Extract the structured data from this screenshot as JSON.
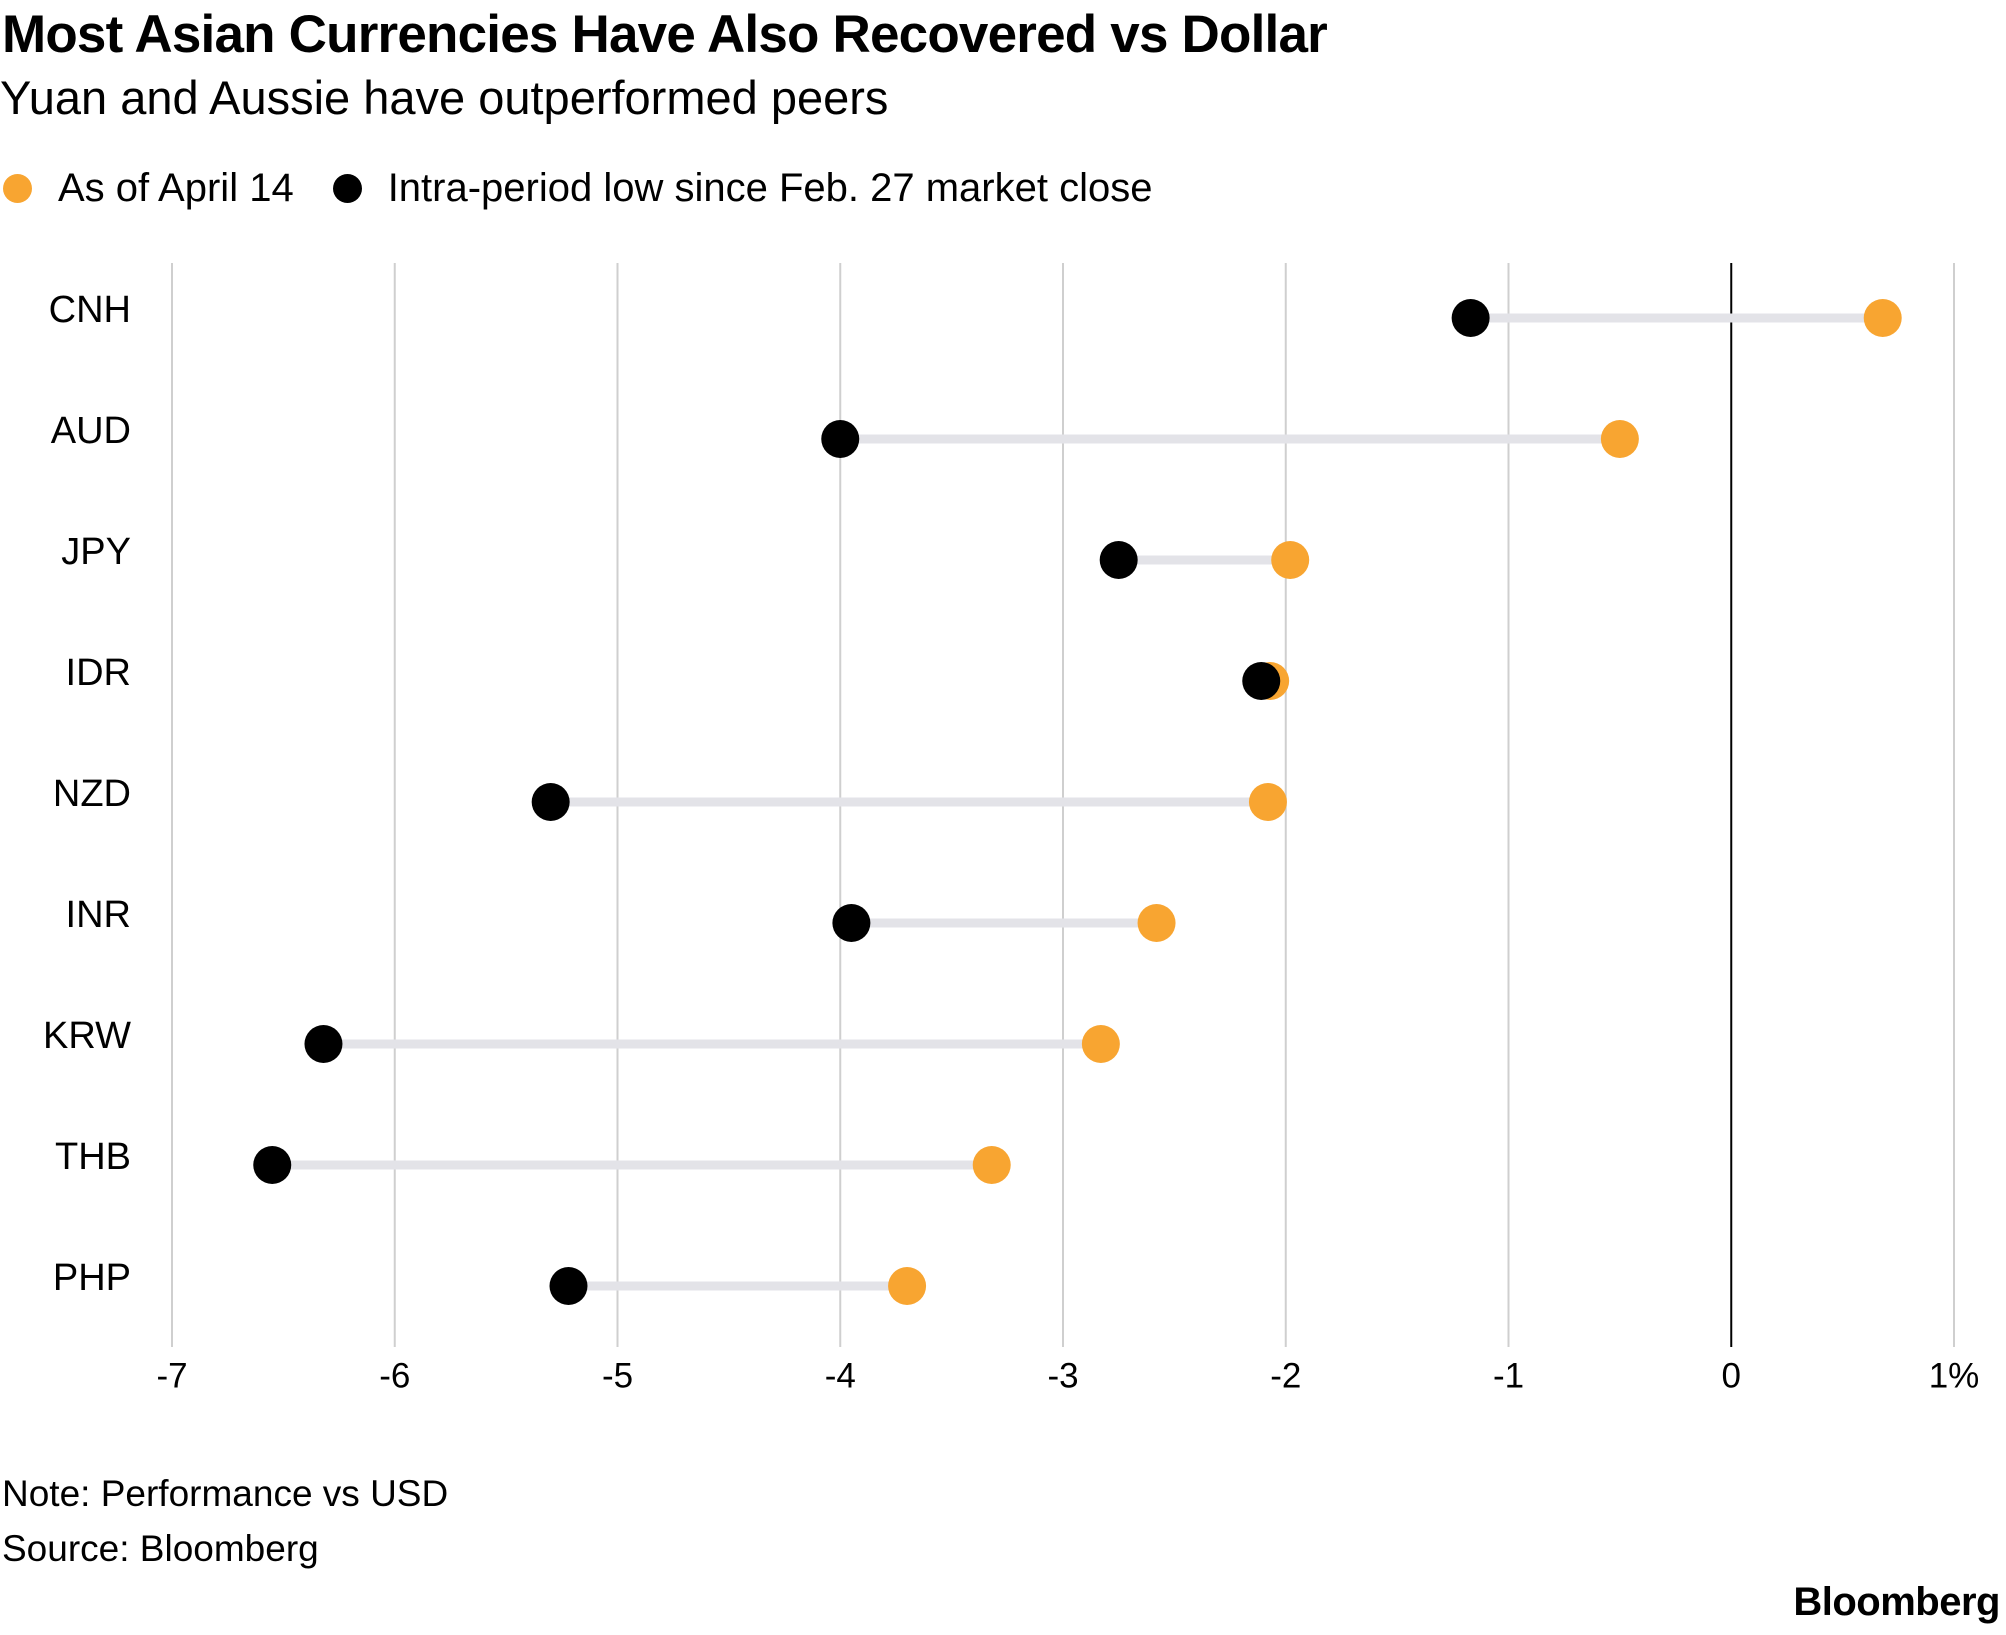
{
  "header": {
    "title": "Most Asian Currencies Have Also Recovered vs Dollar",
    "subtitle": "Yuan and Aussie have outperformed peers"
  },
  "legend": {
    "items": [
      {
        "label": "As of April 14",
        "color": "#F8A531"
      },
      {
        "label": "Intra-period low since Feb. 27 market close",
        "color": "#000000"
      }
    ]
  },
  "chart_data": {
    "type": "dumbbell",
    "title": "Most Asian Currencies Have Also Recovered vs Dollar",
    "subtitle": "Yuan and Aussie have outperformed peers",
    "xlabel": "",
    "ylabel": "",
    "unit": "%",
    "xlim": [
      -7,
      1
    ],
    "x_ticks": [
      -7,
      -6,
      -5,
      -4,
      -3,
      -2,
      -1,
      0,
      1
    ],
    "x_tick_labels": [
      "-7",
      "-6",
      "-5",
      "-4",
      "-3",
      "-2",
      "-1",
      "0",
      "1%"
    ],
    "grid": true,
    "legend_position": "top-left",
    "categories": [
      "CNH",
      "AUD",
      "JPY",
      "IDR",
      "NZD",
      "INR",
      "KRW",
      "THB",
      "PHP"
    ],
    "series": [
      {
        "name": "Intra-period low since Feb. 27 market close",
        "color": "#000000",
        "values": [
          -1.17,
          -4.0,
          -2.75,
          -2.11,
          -5.3,
          -3.95,
          -6.32,
          -6.55,
          -5.22
        ]
      },
      {
        "name": "As of April 14",
        "color": "#F8A531",
        "values": [
          0.68,
          -0.5,
          -1.98,
          -2.07,
          -2.08,
          -2.58,
          -2.83,
          -3.32,
          -3.7
        ]
      }
    ],
    "connector_color": "#E3E3E8",
    "gridline_color": "#CFCFCF",
    "zero_line_color": "#000000"
  },
  "footer": {
    "note": "Note: Performance vs USD",
    "source": "Source: Bloomberg",
    "brand": "Bloomberg"
  }
}
